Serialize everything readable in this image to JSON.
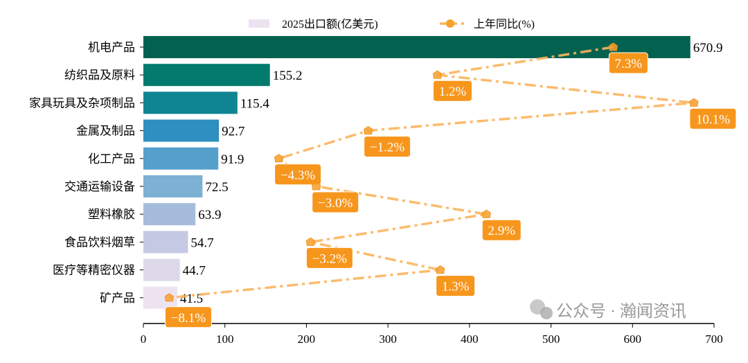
{
  "chart_data": {
    "type": "bar",
    "orientation": "horizontal",
    "categories": [
      "机电产品",
      "纺织品及原料",
      "家具玩具及杂项制品",
      "金属及制品",
      "化工产品",
      "交通运输设备",
      "塑料橡胶",
      "食品饮料烟草",
      "医疗等精密仪器",
      "矿产品"
    ],
    "series": [
      {
        "name": "2025出口额(亿美元)",
        "type": "bar",
        "values": [
          670.9,
          155.2,
          115.4,
          92.7,
          91.9,
          72.5,
          63.9,
          54.7,
          44.7,
          41.5
        ],
        "colors": [
          "#02624f",
          "#027a6e",
          "#0f8593",
          "#2f8fc0",
          "#559fcc",
          "#7cb0d4",
          "#a6bcdd",
          "#c5c9e3",
          "#ddd9ea",
          "#ede3f0"
        ],
        "data_labels": [
          "670.9",
          "155.2",
          "115.4",
          "92.7",
          "91.9",
          "72.5",
          "63.9",
          "54.7",
          "44.7",
          "41.5"
        ]
      },
      {
        "name": "上年同比(%)",
        "type": "line",
        "axis": "secondary-x (hidden)",
        "values": [
          7.3,
          1.2,
          10.1,
          -1.2,
          -4.3,
          -3.0,
          2.9,
          -3.2,
          1.3,
          -8.1
        ],
        "color": "#fbb45c",
        "line_style": "dash-dot",
        "marker": "pentagon",
        "data_labels": [
          "7.3%",
          "1.2%",
          "10.1%",
          "−1.2%",
          "−4.3%",
          "−3.0%",
          "2.9%",
          "−3.2%",
          "1.3%",
          "−8.1%"
        ],
        "label_bg": "#f7961d"
      }
    ],
    "xlim": [
      0,
      700
    ],
    "secondary_xlim": [
      -9.0,
      10.8
    ],
    "xticks": [
      "0",
      "100",
      "200",
      "300",
      "400",
      "500",
      "600",
      "700"
    ],
    "legend": "top-center",
    "grid": false
  },
  "watermark": "公众号 · 瀚闻资讯"
}
